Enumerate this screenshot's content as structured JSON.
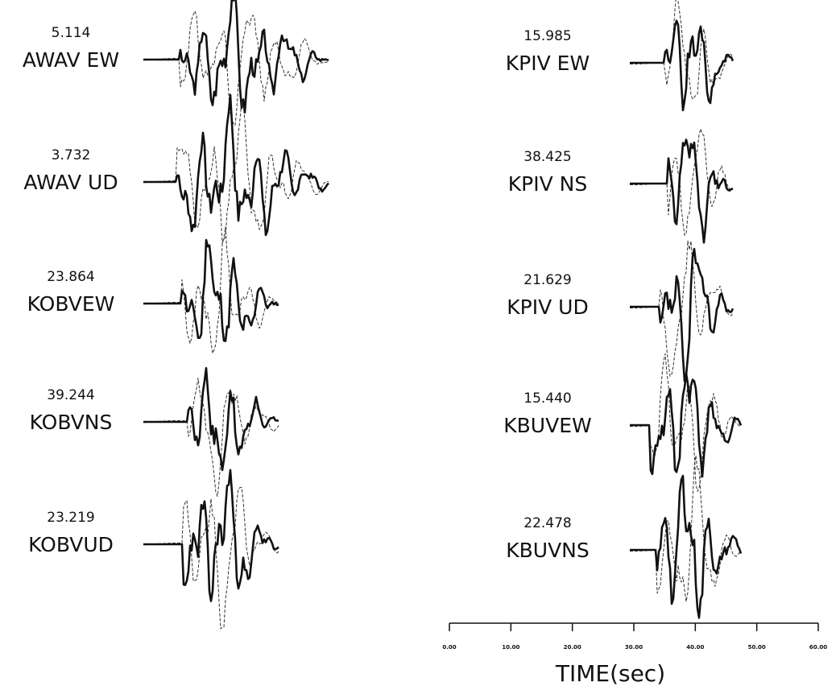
{
  "chart_data": {
    "type": "line",
    "xlabel": "TIME(sec)",
    "xlim": [
      0,
      60
    ],
    "x_ticks": [
      "0.00",
      "10.00",
      "20.00",
      "30.00",
      "40.00",
      "50.00",
      "60.00"
    ],
    "grid": false,
    "series_styles": {
      "observed": "solid",
      "synthetic": "dashed"
    },
    "panels": [
      {
        "amplitude": "5.114",
        "station": "AWAV EW",
        "column": "left"
      },
      {
        "amplitude": "3.732",
        "station": "AWAV UD",
        "column": "left"
      },
      {
        "amplitude": "23.864",
        "station": "KOBVEW",
        "column": "left"
      },
      {
        "amplitude": "39.244",
        "station": "KOBVNS",
        "column": "left"
      },
      {
        "amplitude": "23.219",
        "station": "KOBVUD",
        "column": "left"
      },
      {
        "amplitude": "15.985",
        "station": "KPIV  EW",
        "column": "right"
      },
      {
        "amplitude": "38.425",
        "station": "KPIV  NS",
        "column": "right"
      },
      {
        "amplitude": "21.629",
        "station": "KPIV  UD",
        "column": "right"
      },
      {
        "amplitude": "15.440",
        "station": "KBUVEW",
        "column": "right"
      },
      {
        "amplitude": "22.478",
        "station": "KBUVNS",
        "column": "right"
      }
    ]
  }
}
